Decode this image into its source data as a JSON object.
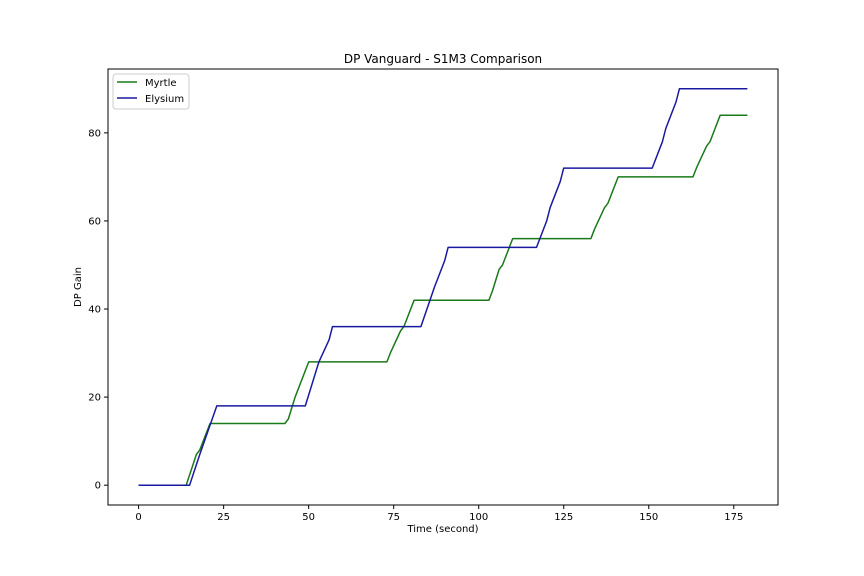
{
  "chart_data": {
    "type": "line",
    "title": "DP Vanguard - S1M3 Comparison",
    "xlabel": "Time (second)",
    "ylabel": "DP Gain",
    "xlim": [
      -9,
      188
    ],
    "ylim": [
      -4.5,
      94.5
    ],
    "xticks": [
      0,
      25,
      50,
      75,
      100,
      125,
      150,
      175
    ],
    "yticks": [
      0,
      20,
      40,
      60,
      80
    ],
    "grid": false,
    "legend_position": "top-left",
    "series": [
      {
        "name": "Myrtle",
        "color": "#1a7a1a",
        "points": [
          [
            0,
            0
          ],
          [
            14,
            0
          ],
          [
            17,
            7
          ],
          [
            18,
            8
          ],
          [
            21,
            14
          ],
          [
            43,
            14
          ],
          [
            44,
            15
          ],
          [
            46,
            20
          ],
          [
            47,
            22
          ],
          [
            50,
            28
          ],
          [
            73,
            28
          ],
          [
            74,
            30
          ],
          [
            77,
            35
          ],
          [
            78,
            36
          ],
          [
            81,
            42
          ],
          [
            103,
            42
          ],
          [
            104,
            44
          ],
          [
            106,
            49
          ],
          [
            107,
            50
          ],
          [
            110,
            56
          ],
          [
            133,
            56
          ],
          [
            134,
            58
          ],
          [
            137,
            63
          ],
          [
            138,
            64
          ],
          [
            141,
            70
          ],
          [
            163,
            70
          ],
          [
            164,
            72
          ],
          [
            167,
            77
          ],
          [
            168,
            78
          ],
          [
            171,
            84
          ],
          [
            179,
            84
          ]
        ]
      },
      {
        "name": "Elysium",
        "color": "#1a1aa0",
        "points": [
          [
            0,
            0
          ],
          [
            15,
            0
          ],
          [
            18,
            7
          ],
          [
            23,
            18
          ],
          [
            49,
            18
          ],
          [
            53,
            28
          ],
          [
            56,
            33
          ],
          [
            57,
            36
          ],
          [
            83,
            36
          ],
          [
            87,
            45
          ],
          [
            90,
            51
          ],
          [
            91,
            54
          ],
          [
            117,
            54
          ],
          [
            120,
            60
          ],
          [
            121,
            63
          ],
          [
            124,
            69
          ],
          [
            125,
            72
          ],
          [
            151,
            72
          ],
          [
            154,
            78
          ],
          [
            155,
            81
          ],
          [
            158,
            87
          ],
          [
            159,
            90
          ],
          [
            179,
            90
          ]
        ]
      }
    ]
  }
}
